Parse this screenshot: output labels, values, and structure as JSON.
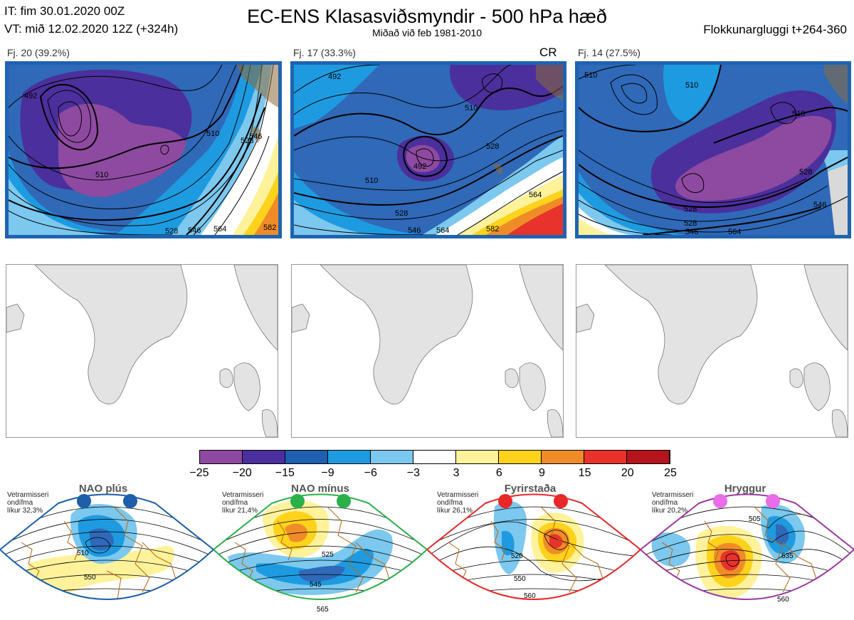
{
  "header": {
    "issue_time": "IT: fim 30.01.2020 00Z",
    "valid_time": "VT: mið 12.02.2020 12Z  (+324h)",
    "title": "EC-ENS Klasasviðsmyndir - 500 hPa hæð",
    "subtitle": "Miðað við feb 1981-2010",
    "window": "Flokkunargluggi t+264-360"
  },
  "clusters": [
    {
      "label": "Fj. 20 (39.2%)",
      "tag": "",
      "contours": [
        "492",
        "510",
        "528",
        "546",
        "564",
        "582"
      ]
    },
    {
      "label": "Fj. 17 (33.3%)",
      "tag": "CR",
      "contours": [
        "492",
        "510",
        "528",
        "546",
        "564",
        "582"
      ]
    },
    {
      "label": "Fj. 14 (27.5%)",
      "tag": "",
      "contours": [
        "510",
        "528",
        "546",
        "564"
      ]
    }
  ],
  "colorbar": {
    "ticks": [
      "−25",
      "−20",
      "−15",
      "−9",
      "−6",
      "−3",
      "3",
      "6",
      "9",
      "15",
      "20",
      "25"
    ],
    "colors": [
      "#8e4aa0",
      "#4b2f9c",
      "#1f5fb0",
      "#1e9be0",
      "#7cc8ee",
      "#ffffff",
      "#fff29a",
      "#ffd21c",
      "#f08c28",
      "#e8322c",
      "#b4141a"
    ]
  },
  "regimes": [
    {
      "name": "NAO plús",
      "info": [
        "Vetrarmisseri",
        "ondífma",
        "líkur 32,3%"
      ],
      "color": "#1d5fa8",
      "contours": [
        "510",
        "550"
      ]
    },
    {
      "name": "NAO mínus",
      "info": [
        "Vetrarmisseri",
        "ondífma",
        "líkur 21,4%"
      ],
      "color": "#2ab04a",
      "contours": [
        "525",
        "545",
        "565"
      ]
    },
    {
      "name": "Fyrirstaða",
      "info": [
        "Vetrarmisseri",
        "ondífma",
        "líkur 26,1%"
      ],
      "color": "#e82828",
      "contours": [
        "520",
        "550",
        "560"
      ]
    },
    {
      "name": "Hryggur",
      "info": [
        "Vetrarmisseri",
        "ondífma",
        "líkur 20,2%"
      ],
      "color": "#9b3aa0",
      "contours": [
        "505",
        "535",
        "560"
      ]
    }
  ]
}
